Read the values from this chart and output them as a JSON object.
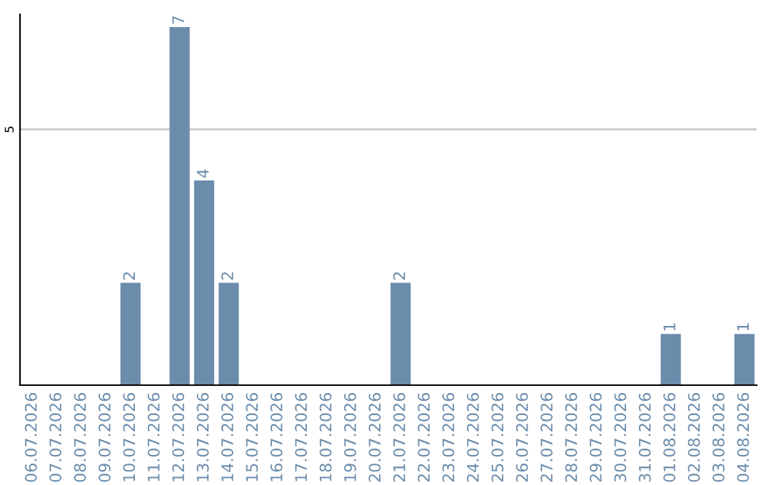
{
  "chart_data": {
    "type": "bar",
    "categories": [
      "06.07.2026",
      "07.07.2026",
      "08.07.2026",
      "09.07.2026",
      "10.07.2026",
      "11.07.2026",
      "12.07.2026",
      "13.07.2026",
      "14.07.2026",
      "15.07.2026",
      "16.07.2026",
      "17.07.2026",
      "18.07.2026",
      "19.07.2026",
      "20.07.2026",
      "21.07.2026",
      "22.07.2026",
      "23.07.2026",
      "24.07.2026",
      "25.07.2026",
      "26.07.2026",
      "27.07.2026",
      "28.07.2026",
      "29.07.2026",
      "30.07.2026",
      "31.07.2026",
      "01.08.2026",
      "02.08.2026",
      "03.08.2026",
      "04.08.2026"
    ],
    "values": [
      0,
      0,
      0,
      0,
      2,
      0,
      7,
      4,
      2,
      0,
      0,
      0,
      0,
      0,
      0,
      2,
      0,
      0,
      0,
      0,
      0,
      0,
      0,
      0,
      0,
      0,
      1,
      0,
      0,
      1
    ],
    "value_labels": [
      null,
      null,
      null,
      null,
      "2",
      null,
      "7",
      "4",
      "2",
      null,
      null,
      null,
      null,
      null,
      null,
      "2",
      null,
      null,
      null,
      null,
      null,
      null,
      null,
      null,
      null,
      null,
      "1",
      null,
      null,
      "1"
    ],
    "color": "#6b8cab",
    "ylim": [
      0,
      7.25
    ],
    "yticks": [
      5
    ],
    "grid": "y",
    "legend": false
  }
}
